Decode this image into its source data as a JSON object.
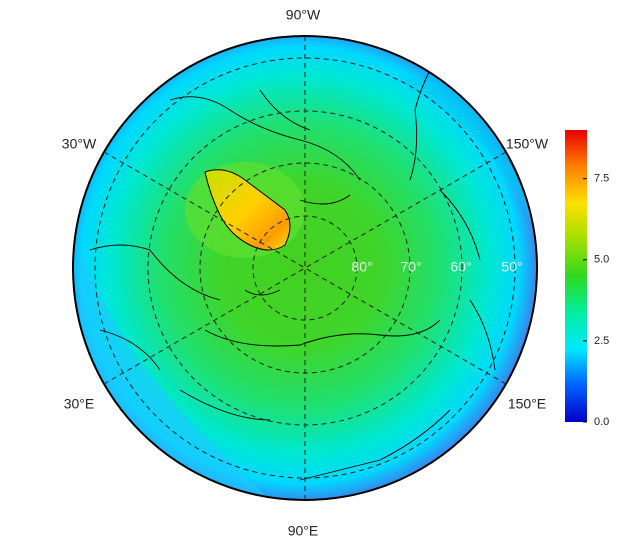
{
  "map": {
    "lon_labels": [
      "90°W",
      "30°W",
      "150°W",
      "30°E",
      "150°E",
      "90°E"
    ],
    "lat_labels": [
      "80°",
      "70°",
      "60°",
      "50°"
    ],
    "colorbar": {
      "range": [
        0,
        9
      ],
      "ticks": [
        {
          "value": 0,
          "label": "0.0"
        },
        2.5,
        {
          "value": 5,
          "label": "5.0"
        },
        7.5
      ],
      "colors": [
        "#0000c8",
        "#0060ff",
        "#00e8ff",
        "#00f0a0",
        "#30d820",
        "#a0e000",
        "#ffe000",
        "#ff8000",
        "#e80000"
      ]
    }
  }
}
